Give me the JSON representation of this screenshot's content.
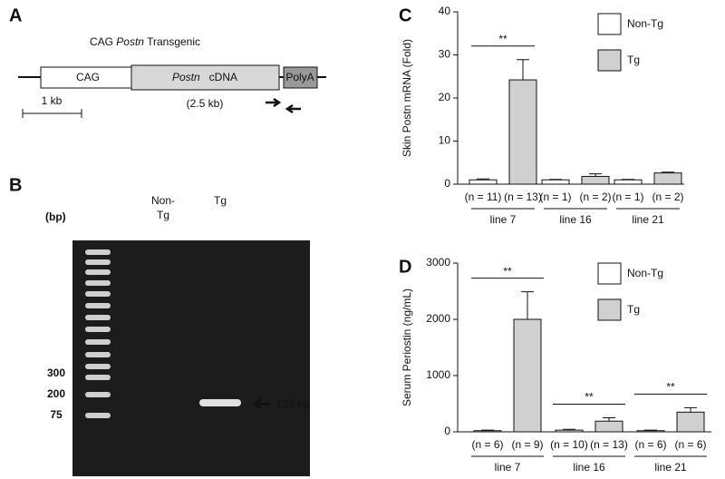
{
  "panel_a": {
    "letter": "A",
    "title": [
      "CAG ",
      "Postn",
      " Transgenic"
    ],
    "promoter": "CAG",
    "cdna": [
      "Postn",
      "cDNA"
    ],
    "polya": "PolyA",
    "size": "(2.5 kb)",
    "scale": "1 kb"
  },
  "panel_b": {
    "letter": "B",
    "unit": "(bp)",
    "non_tg_lane": [
      "Non-",
      "Tg"
    ],
    "tg_lane": "Tg",
    "markers": [
      "300",
      "200",
      "75"
    ],
    "band": "125 bp"
  },
  "chart_data": [
    {
      "type": "bar",
      "panel": "C",
      "ylabel": "Skin Postn mRNA  (Fold)",
      "categories": [
        "line 7",
        "line 16",
        "line 21"
      ],
      "series": [
        {
          "name": "Non-Tg",
          "color": "#ffffff",
          "values": [
            1,
            1,
            1
          ],
          "errors": [
            0.2,
            0.1,
            0.1
          ],
          "n_labels": [
            "(n = 11)",
            "(n = 1)",
            "(n = 1)"
          ]
        },
        {
          "name": "Tg",
          "color": "#d0d0d0",
          "values": [
            24.2,
            1.8,
            2.6
          ],
          "errors": [
            4.7,
            0.6,
            0.2
          ],
          "n_labels": [
            "(n = 13)",
            "(n = 2)",
            "(n = 2)"
          ]
        }
      ],
      "ylim": [
        0,
        40
      ],
      "yticks": [
        0,
        10,
        20,
        30,
        40
      ],
      "grid": false,
      "legend": "upper right",
      "significance": [
        {
          "category": "line 7",
          "label": "**"
        }
      ]
    },
    {
      "type": "bar",
      "panel": "D",
      "ylabel": "Serum Periostin (ng/mL)",
      "categories": [
        "line 7",
        "line 16",
        "line 21"
      ],
      "series": [
        {
          "name": "Non-Tg",
          "color": "#ffffff",
          "values": [
            20,
            30,
            20
          ],
          "errors": [
            10,
            15,
            10
          ],
          "n_labels": [
            "(n = 6)",
            "(n = 10)",
            "(n = 6)"
          ]
        },
        {
          "name": "Tg",
          "color": "#d0d0d0",
          "values": [
            2000,
            190,
            350
          ],
          "errors": [
            490,
            60,
            80
          ],
          "n_labels": [
            "(n = 9)",
            "(n = 13)",
            "(n = 6)"
          ]
        }
      ],
      "ylim": [
        0,
        3000
      ],
      "yticks": [
        0,
        1000,
        2000,
        3000
      ],
      "grid": false,
      "legend": "upper right",
      "significance": [
        {
          "category": "line 7",
          "label": "**"
        },
        {
          "category": "line 16",
          "label": "**"
        },
        {
          "category": "line 21",
          "label": "**"
        }
      ]
    }
  ]
}
